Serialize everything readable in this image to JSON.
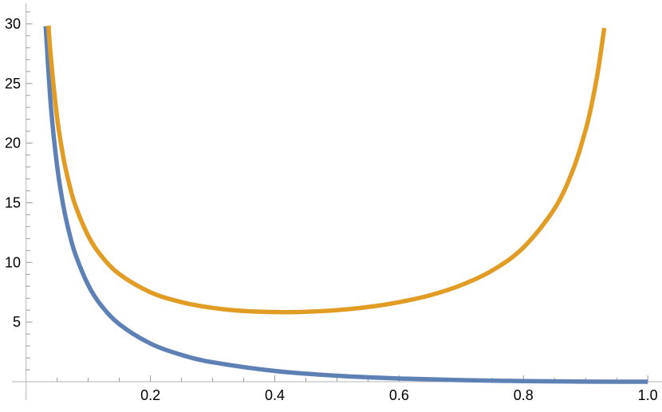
{
  "chart_data": {
    "type": "line",
    "title": "",
    "xlabel": "",
    "ylabel": "",
    "xlim": [
      0,
      1.0
    ],
    "ylim": [
      0,
      30
    ],
    "grid": false,
    "x_ticks": [
      {
        "value": 0.2,
        "label": "0.2"
      },
      {
        "value": 0.4,
        "label": "0.4"
      },
      {
        "value": 0.6,
        "label": "0.6"
      },
      {
        "value": 0.8,
        "label": "0.8"
      },
      {
        "value": 1.0,
        "label": "1.0"
      }
    ],
    "y_ticks": [
      {
        "value": 5,
        "label": "5"
      },
      {
        "value": 10,
        "label": "10"
      },
      {
        "value": 15,
        "label": "15"
      },
      {
        "value": 20,
        "label": "20"
      },
      {
        "value": 25,
        "label": "25"
      },
      {
        "value": 30,
        "label": "30"
      }
    ],
    "series": [
      {
        "color": "#5e81b5",
        "x": [
          0.0315,
          0.04,
          0.05,
          0.06,
          0.07,
          0.08,
          0.1,
          0.12,
          0.15,
          0.2,
          0.25,
          0.3,
          0.4,
          0.5,
          0.6,
          0.7,
          0.8,
          0.9,
          1.0
        ],
        "y": [
          29.8,
          23.04,
          18.05,
          14.73,
          12.36,
          10.58,
          8.1,
          6.45,
          4.82,
          3.2,
          2.25,
          1.63,
          0.9,
          0.5,
          0.27,
          0.13,
          0.05,
          0.01,
          0
        ]
      },
      {
        "color": "#e19c24",
        "x": [
          0.036,
          0.04,
          0.05,
          0.06,
          0.07,
          0.08,
          0.1,
          0.12,
          0.15,
          0.2,
          0.25,
          0.3,
          0.35,
          0.414,
          0.45,
          0.5,
          0.55,
          0.6,
          0.65,
          0.7,
          0.75,
          0.8,
          0.85,
          0.88,
          0.9,
          0.91,
          0.92,
          0.93
        ],
        "y": [
          29.85,
          27.08,
          22.11,
          18.79,
          16.44,
          14.67,
          12.22,
          10.61,
          9.02,
          7.5,
          6.67,
          6.19,
          5.93,
          5.83,
          5.86,
          6.0,
          6.26,
          6.67,
          7.25,
          8.1,
          9.33,
          11.25,
          14.51,
          17.8,
          21.11,
          23.32,
          26.09,
          29.65
        ]
      }
    ]
  }
}
